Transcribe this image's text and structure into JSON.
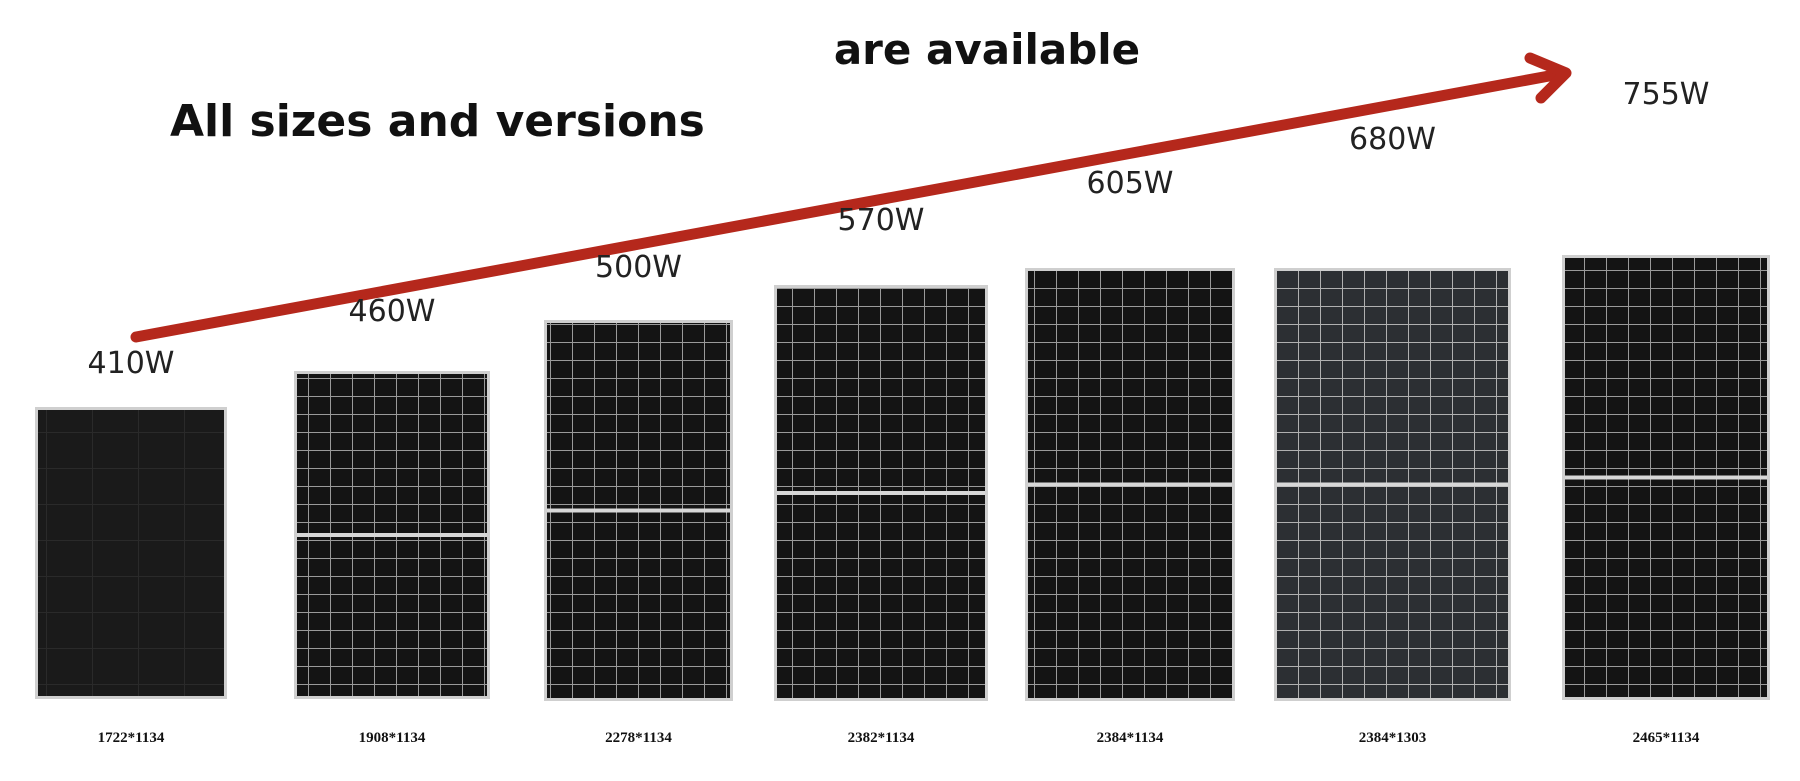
{
  "header": {
    "line1": "are available",
    "line2": "All sizes and versions"
  },
  "panels": [
    {
      "power": "410W",
      "size": "1722*1134"
    },
    {
      "power": "460W",
      "size": "1908*1134"
    },
    {
      "power": "500W",
      "size": "2278*1134"
    },
    {
      "power": "570W",
      "size": "2382*1134"
    },
    {
      "power": "605W",
      "size": "2384*1134"
    },
    {
      "power": "680W",
      "size": "2384*1303"
    },
    {
      "power": "755W",
      "size": "2465*1134"
    }
  ]
}
